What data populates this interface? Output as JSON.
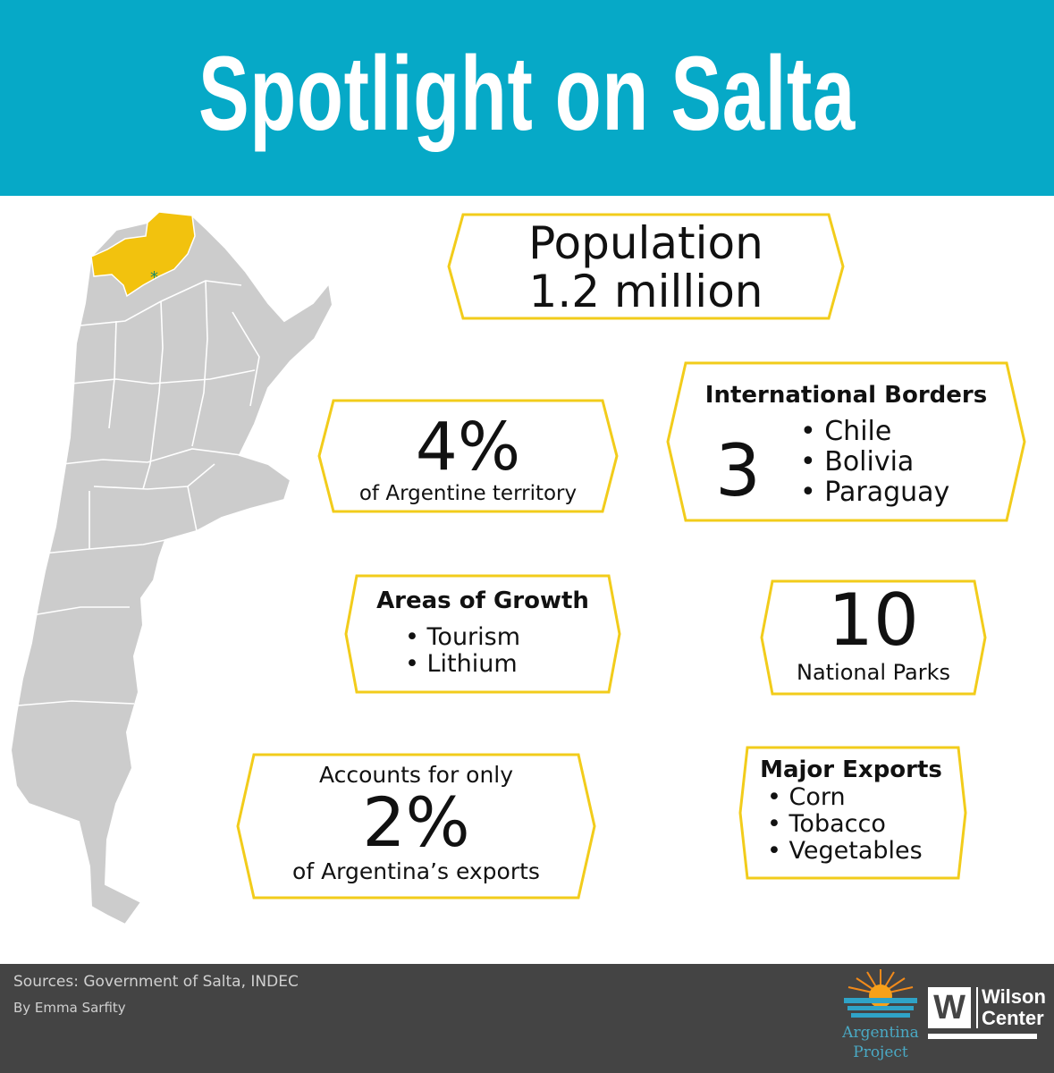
{
  "header": {
    "title": "Spotlight on Salta"
  },
  "colors": {
    "header_bg": "#06a9c7",
    "accent": "#f2cc1b",
    "map_gray": "#cccccc",
    "footer_bg": "#444444"
  },
  "population": {
    "label": "Population",
    "value": "1.2 million"
  },
  "territory": {
    "value": "4%",
    "caption": "of Argentine territory"
  },
  "borders": {
    "title": "International Borders",
    "count": "3",
    "countries": [
      "Chile",
      "Bolivia",
      "Paraguay"
    ]
  },
  "growth": {
    "title": "Areas of Growth",
    "items": [
      "Tourism",
      "Lithium"
    ]
  },
  "parks": {
    "value": "10",
    "caption": "National Parks"
  },
  "exports_share": {
    "intro": "Accounts for only",
    "value": "2%",
    "caption": "of Argentina’s exports"
  },
  "major_exports": {
    "title": "Major Exports",
    "items": [
      "Corn",
      "Tobacco",
      "Vegetables"
    ]
  },
  "footer": {
    "sources": "Sources: Government of Salta, INDEC",
    "byline": "By Emma Sarfity",
    "argentina_project_line1": "Argentina",
    "argentina_project_line2": "Project",
    "wilson_line1": "Wilson",
    "wilson_line2": "Center",
    "wilson_mark": "W"
  },
  "icons": [
    "argentina-map",
    "salta-province-highlight",
    "capital-asterisk",
    "argentina-project-sun-logo",
    "wilson-center-logo"
  ]
}
